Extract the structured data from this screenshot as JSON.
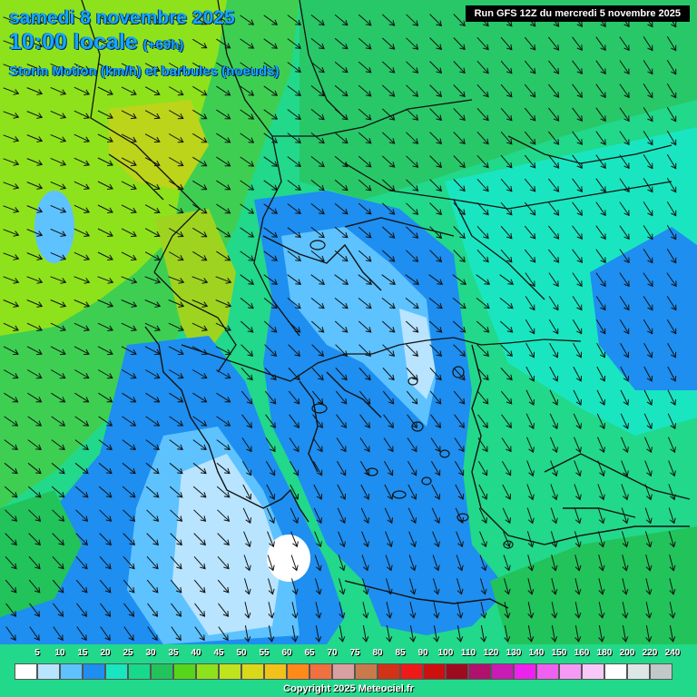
{
  "header": {
    "date": "samedi 8 novembre 2025",
    "time": "10:00 locale",
    "offset": "(+69h)",
    "subtitle": "Storm Motion (km/h) et barbules (noeuds)"
  },
  "run_info": "Run GFS 12Z du mercredi 5 novembre 2025",
  "legend": {
    "labels": [
      "5",
      "10",
      "15",
      "20",
      "25",
      "30",
      "35",
      "40",
      "45",
      "50",
      "55",
      "60",
      "65",
      "70",
      "75",
      "80",
      "85",
      "90",
      "100",
      "110",
      "120",
      "130",
      "140",
      "150",
      "160",
      "180",
      "200",
      "220",
      "240"
    ],
    "colors": [
      "#ffffff",
      "#b8e4ff",
      "#5ec2ff",
      "#1e8ef0",
      "#19e6c0",
      "#17d98a",
      "#22c35a",
      "#55d61a",
      "#8ee21c",
      "#bfe31c",
      "#d9d91a",
      "#f0c21a",
      "#ff8a1a",
      "#f07040",
      "#d8a0a0",
      "#c87a4a",
      "#d23218",
      "#ee1a1a",
      "#cc0f0f",
      "#9e0a1e",
      "#b0106e",
      "#c81cb4",
      "#ee22ee",
      "#f060f0",
      "#f49af4",
      "#f8c8f8",
      "#ffffff",
      "#dfe6e6",
      "#c0c8c8"
    ]
  },
  "copyright": "Copyright 2025 Meteociel.fr"
}
